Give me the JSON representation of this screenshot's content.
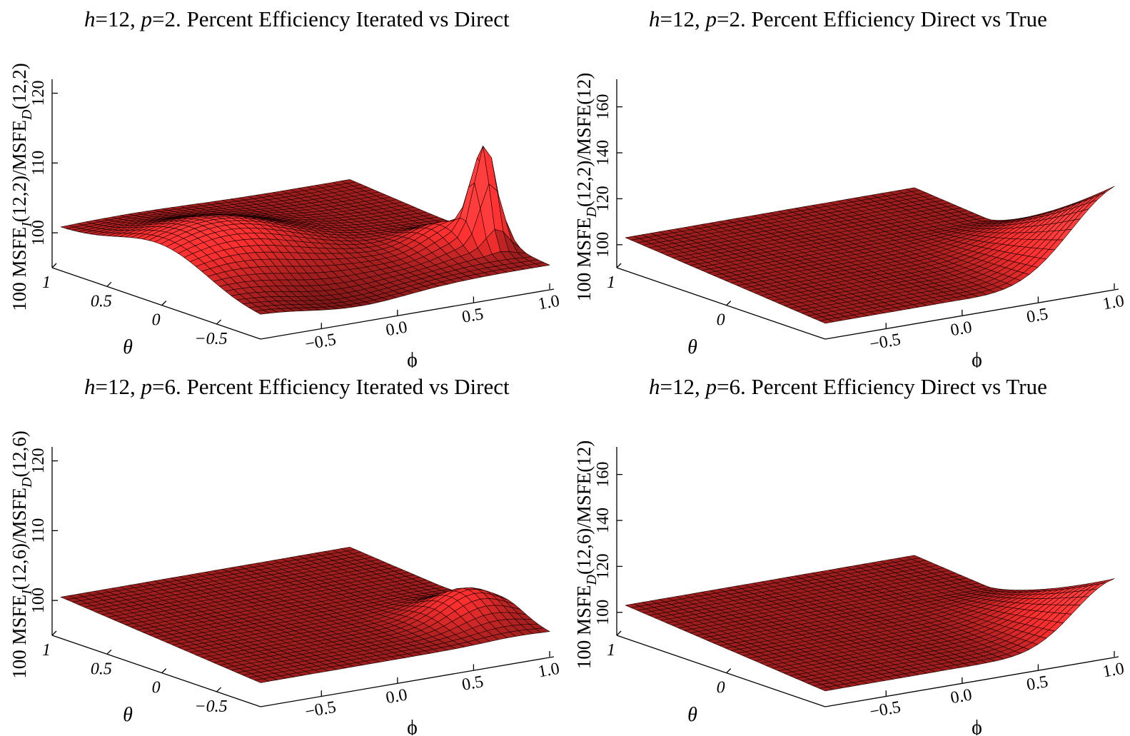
{
  "figure": {
    "background": "#ffffff",
    "surface_color": "#ff3030",
    "edge_color": "#1a0000"
  },
  "chart_data": [
    {
      "type": "surface",
      "title": {
        "h": "12",
        "p": "2",
        "text": "Percent Efficiency Iterated vs Direct"
      },
      "zlabel": {
        "pre": "100 MSFE",
        "sub1": "I",
        "mid": "(12,2)/MSFE",
        "sub2": "D",
        "post": "(12,2)"
      },
      "xlabel": "ϕ",
      "ylabel": "θ",
      "x_ticks": [
        "−0.5",
        "0.0",
        "0.5",
        "1.0"
      ],
      "y_ticks": [
        "1",
        "0.5",
        "0",
        "−0.5"
      ],
      "z_ticks": [
        "100",
        "110",
        "120"
      ],
      "xlim": [
        -0.9,
        1.0
      ],
      "ylim": [
        -0.9,
        1.0
      ],
      "zlim": [
        95,
        122
      ],
      "surface": {
        "base": 100,
        "ridge_amp": 9,
        "ridge_phi": -0.5,
        "ridge_theta": 0.0,
        "ridge_width": 0.45,
        "dip_amp": -4,
        "peak_amp": 20,
        "peak_phi": 0.85,
        "peak_theta": -0.5,
        "peak_width": 0.07,
        "hump_amp": 5,
        "hump_phi": 0.72,
        "hump_theta": -0.35,
        "hump_width": 0.18
      }
    },
    {
      "type": "surface",
      "title": {
        "h": "12",
        "p": "2",
        "text": "Percent Efficiency Direct vs True"
      },
      "zlabel": {
        "pre": "100 MSFE",
        "sub1": "D",
        "mid": "(12,2)/MSFE(12)",
        "sub2": "",
        "post": ""
      },
      "xlabel": "ϕ",
      "ylabel": "θ",
      "x_ticks": [
        "−0.5",
        "0.0",
        "0.5",
        "1.0"
      ],
      "y_ticks": [
        "1",
        "0"
      ],
      "z_ticks": [
        "100",
        "120",
        "140",
        "160"
      ],
      "xlim": [
        -0.9,
        1.0
      ],
      "ylim": [
        -0.9,
        1.0
      ],
      "zlim": [
        90,
        172
      ],
      "surface": {
        "base": 100,
        "wedge_amp": 62,
        "wedge_phi": 0.8,
        "wedge_theta": -0.8,
        "wedge_width": 0.45
      }
    },
    {
      "type": "surface",
      "title": {
        "h": "12",
        "p": "6",
        "text": "Percent Efficiency Iterated vs Direct"
      },
      "zlabel": {
        "pre": "100 MSFE",
        "sub1": "I",
        "mid": "(12,6)/MSFE",
        "sub2": "D",
        "post": "(12,6)"
      },
      "xlabel": "ϕ",
      "ylabel": "θ",
      "x_ticks": [
        "−0.5",
        "0.0",
        "0.5",
        "1.0"
      ],
      "y_ticks": [
        "1",
        "0.5",
        "0",
        "−0.5"
      ],
      "z_ticks": [
        "100",
        "110",
        "120"
      ],
      "xlim": [
        -0.9,
        1.0
      ],
      "ylim": [
        -0.9,
        1.0
      ],
      "zlim": [
        95,
        122
      ],
      "surface": {
        "base": 100,
        "hump_amp": 6,
        "hump_phi": 0.78,
        "hump_theta": -0.45,
        "hump_width": 0.2
      }
    },
    {
      "type": "surface",
      "title": {
        "h": "12",
        "p": "6",
        "text": "Percent Efficiency Direct vs True"
      },
      "zlabel": {
        "pre": "100 MSFE",
        "sub1": "D",
        "mid": "(12,6)/MSFE(12)",
        "sub2": "",
        "post": ""
      },
      "xlabel": "ϕ",
      "ylabel": "θ",
      "x_ticks": [
        "−0.5",
        "0.0",
        "0.5",
        "1.0"
      ],
      "y_ticks": [
        "1",
        "0"
      ],
      "z_ticks": [
        "100",
        "120",
        "140",
        "160"
      ],
      "xlim": [
        -0.9,
        1.0
      ],
      "ylim": [
        -0.9,
        1.0
      ],
      "zlim": [
        90,
        172
      ],
      "surface": {
        "base": 100,
        "wedge_amp": 44,
        "wedge_phi": 0.85,
        "wedge_theta": -0.8,
        "wedge_width": 0.35
      }
    }
  ]
}
